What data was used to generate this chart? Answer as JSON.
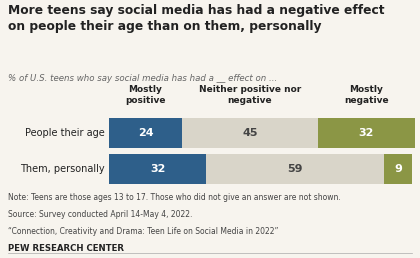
{
  "title": "More teens say social media has had a negative effect\non people their age than on them, personally",
  "subtitle": "% of U.S. teens who say social media has had a __ effect on ...",
  "categories": [
    "People their age",
    "Them, personally"
  ],
  "col_headers": [
    "Mostly\npositive",
    "Neither positive nor\nnegative",
    "Mostly\nnegative"
  ],
  "values": [
    [
      24,
      45,
      32
    ],
    [
      32,
      59,
      9
    ]
  ],
  "colors": [
    "#2E5F8A",
    "#D9D5C9",
    "#8B9645"
  ],
  "note_lines": [
    "Note: Teens are those ages 13 to 17. Those who did not give an answer are not shown.",
    "Source: Survey conducted April 14-May 4, 2022.",
    "“Connection, Creativity and Drama: Teen Life on Social Media in 2022”"
  ],
  "footer": "PEW RESEARCH CENTER",
  "bg_color": "#F7F4EE",
  "text_color": "#222222"
}
